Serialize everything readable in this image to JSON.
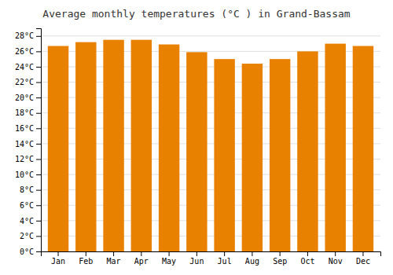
{
  "chart_data": {
    "type": "bar",
    "title": "Average monthly temperatures (°C ) in Grand-Bassam",
    "categories": [
      "Jan",
      "Feb",
      "Mar",
      "Apr",
      "May",
      "Jun",
      "Jul",
      "Aug",
      "Sep",
      "Oct",
      "Nov",
      "Dec"
    ],
    "values": [
      26.7,
      27.2,
      27.5,
      27.5,
      26.9,
      25.9,
      25.0,
      24.4,
      25.0,
      26.0,
      27.0,
      26.7
    ],
    "color": "#E88000",
    "ylim": [
      0,
      29
    ],
    "yticks": [
      {
        "value": 0,
        "label": "0°C"
      },
      {
        "value": 2,
        "label": "2°C"
      },
      {
        "value": 4,
        "label": "4°C"
      },
      {
        "value": 6,
        "label": "6°C"
      },
      {
        "value": 8,
        "label": "8°C"
      },
      {
        "value": 10,
        "label": "10°C"
      },
      {
        "value": 12,
        "label": "12°C"
      },
      {
        "value": 14,
        "label": "14°C"
      },
      {
        "value": 16,
        "label": "16°C"
      },
      {
        "value": 18,
        "label": "18°C"
      },
      {
        "value": 20,
        "label": "20°C"
      },
      {
        "value": 22,
        "label": "22°C"
      },
      {
        "value": 24,
        "label": "24°C"
      },
      {
        "value": 26,
        "label": "26°C"
      },
      {
        "value": 28,
        "label": "28°C"
      }
    ],
    "grid": true
  }
}
